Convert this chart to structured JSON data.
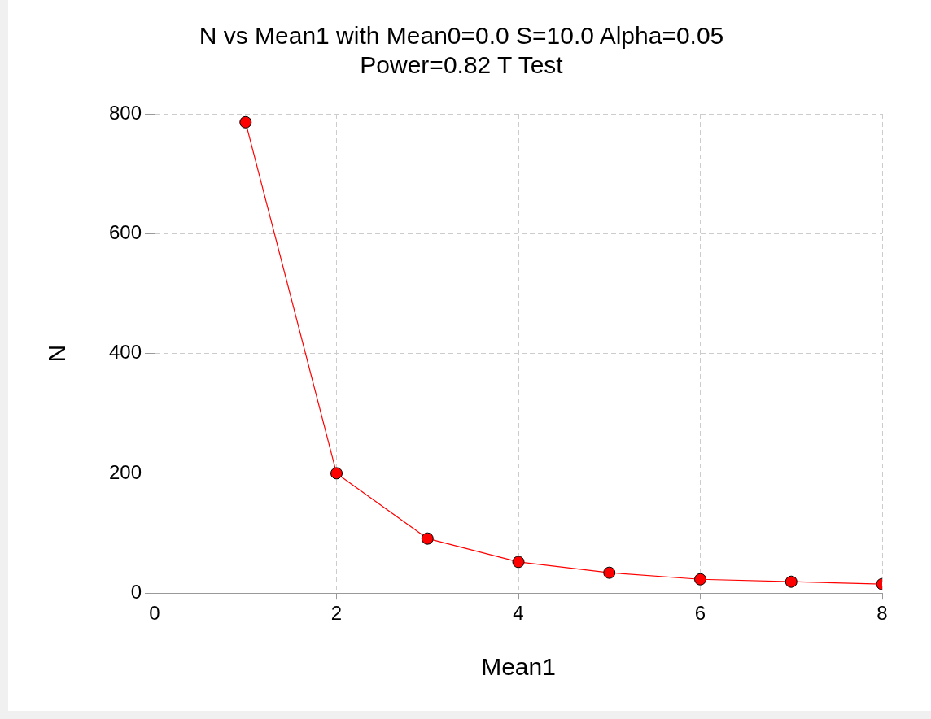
{
  "chart_data": {
    "type": "line",
    "title": "N vs Mean1 with Mean0=0.0 S=10.0 Alpha=0.05\nPower=0.82 T Test",
    "xlabel": "Mean1",
    "ylabel": "N",
    "x": [
      1,
      2,
      3,
      4,
      5,
      6,
      7,
      8
    ],
    "series": [
      {
        "color": "#ff0000",
        "values": [
          786,
          200,
          91,
          52,
          34,
          23,
          19,
          15
        ]
      }
    ],
    "xlim": [
      0,
      8
    ],
    "xticks": [
      0,
      2,
      4,
      6,
      8
    ],
    "ylim": [
      0,
      800
    ],
    "yticks": [
      0,
      200,
      400,
      600,
      800
    ],
    "grid": true,
    "legend": false,
    "marker": "circle",
    "line_style": "solid"
  }
}
